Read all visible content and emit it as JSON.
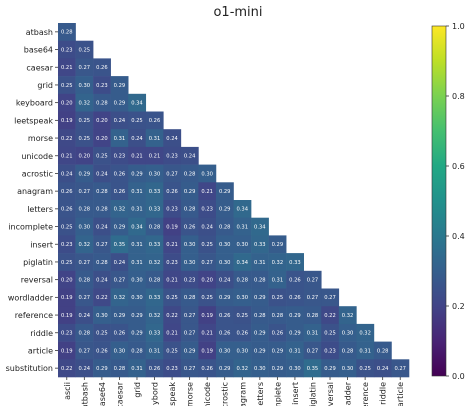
{
  "chart_data": {
    "type": "heatmap",
    "title": "o1-mini",
    "row_labels": [
      "atbash",
      "base64",
      "caesar",
      "grid",
      "keyboard",
      "leetspeak",
      "morse",
      "unicode",
      "acrostic",
      "anagram",
      "letters",
      "incomplete",
      "insert",
      "piglatin",
      "reversal",
      "wordladder",
      "reference",
      "riddle",
      "article",
      "substitution"
    ],
    "col_labels": [
      "ascii",
      "atbash",
      "base64",
      "caesar",
      "grid",
      "keyboard",
      "leetspeak",
      "morse",
      "unicode",
      "acrostic",
      "anagram",
      "letters",
      "incomplete",
      "insert",
      "piglatin",
      "reversal",
      "wordladder",
      "reference",
      "riddle",
      "article"
    ],
    "col_labels_visible": [
      "ascii",
      "atbash",
      "base64",
      "caesar",
      "grid",
      "ybord",
      "leetspeak",
      "morse",
      "nicode",
      "crostic",
      "agram",
      "letters",
      "mplete",
      "insert",
      "piglatin",
      "eversal",
      "ladder",
      "erence",
      "riddle",
      "article"
    ],
    "values": [
      [
        0.28
      ],
      [
        0.23,
        0.25
      ],
      [
        0.21,
        0.27,
        0.26
      ],
      [
        0.25,
        0.3,
        0.23,
        0.29
      ],
      [
        0.2,
        0.32,
        0.28,
        0.29,
        0.34
      ],
      [
        0.19,
        0.25,
        0.2,
        0.24,
        0.25,
        0.26
      ],
      [
        0.22,
        0.25,
        0.2,
        0.31,
        0.24,
        0.31,
        0.24
      ],
      [
        0.21,
        0.2,
        0.25,
        0.23,
        0.21,
        0.21,
        0.23,
        0.24
      ],
      [
        0.24,
        0.29,
        0.24,
        0.26,
        0.29,
        0.3,
        0.27,
        0.28,
        0.3
      ],
      [
        0.26,
        0.27,
        0.28,
        0.26,
        0.31,
        0.33,
        0.26,
        0.29,
        0.21,
        0.29
      ],
      [
        0.26,
        0.28,
        0.28,
        0.32,
        0.31,
        0.33,
        0.23,
        0.28,
        0.23,
        0.29,
        0.34
      ],
      [
        0.25,
        0.3,
        0.24,
        0.29,
        0.34,
        0.28,
        0.19,
        0.26,
        0.24,
        0.28,
        0.31,
        0.34
      ],
      [
        0.23,
        0.32,
        0.27,
        0.35,
        0.31,
        0.33,
        0.21,
        0.3,
        0.25,
        0.3,
        0.3,
        0.33,
        0.29
      ],
      [
        0.25,
        0.27,
        0.28,
        0.24,
        0.31,
        0.32,
        0.23,
        0.3,
        0.27,
        0.3,
        0.34,
        0.31,
        0.32,
        0.33
      ],
      [
        0.2,
        0.28,
        0.24,
        0.27,
        0.3,
        0.28,
        0.21,
        0.23,
        0.2,
        0.24,
        0.28,
        0.28,
        0.31,
        0.26,
        0.27
      ],
      [
        0.19,
        0.27,
        0.22,
        0.32,
        0.3,
        0.33,
        0.25,
        0.28,
        0.25,
        0.29,
        0.3,
        0.29,
        0.25,
        0.26,
        0.27,
        0.27
      ],
      [
        0.19,
        0.24,
        0.3,
        0.29,
        0.29,
        0.32,
        0.22,
        0.27,
        0.19,
        0.26,
        0.25,
        0.28,
        0.28,
        0.29,
        0.28,
        0.22,
        0.32
      ],
      [
        0.23,
        0.28,
        0.25,
        0.26,
        0.29,
        0.33,
        0.21,
        0.27,
        0.21,
        0.26,
        0.26,
        0.29,
        0.26,
        0.29,
        0.31,
        0.25,
        0.3,
        0.32
      ],
      [
        0.19,
        0.27,
        0.26,
        0.3,
        0.28,
        0.31,
        0.25,
        0.29,
        0.19,
        0.3,
        0.3,
        0.29,
        0.29,
        0.31,
        0.27,
        0.23,
        0.28,
        0.31,
        0.28
      ],
      [
        0.22,
        0.24,
        0.29,
        0.28,
        0.31,
        0.26,
        0.23,
        0.27,
        0.26,
        0.29,
        0.32,
        0.3,
        0.29,
        0.3,
        0.35,
        0.29,
        0.3,
        0.25,
        0.24,
        0.27
      ]
    ],
    "colorbar": {
      "min": 0.0,
      "max": 1.0,
      "ticks": [
        0.0,
        0.2,
        0.4,
        0.6,
        0.8,
        1.0
      ],
      "colormap": "viridis"
    },
    "grid": false,
    "legend": "none"
  }
}
